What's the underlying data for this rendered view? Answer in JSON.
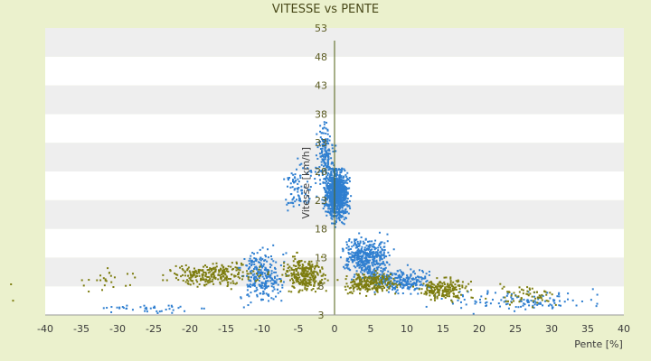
{
  "chart_data": {
    "type": "scatter",
    "title": "VITESSE vs PENTE",
    "xlabel": "Pente [%]",
    "ylabel": "Vitesse [km/h]",
    "xlim": [
      -40,
      40
    ],
    "ylim": [
      3,
      53
    ],
    "x_ticks": [
      -40,
      -35,
      -30,
      -25,
      -20,
      -15,
      -10,
      -5,
      0,
      5,
      10,
      15,
      20,
      25,
      30,
      35,
      40
    ],
    "y_ticks": [
      3,
      8,
      13,
      18,
      23,
      28,
      33,
      38,
      43,
      48,
      53
    ],
    "grid": "horizontal alternating bands",
    "colors": {
      "background": "#ebf1cd",
      "plot_band_light": "#ffffff",
      "plot_band_dark": "#eeeeee",
      "axis_line": "#4f5f10",
      "series_blue": "#2f7fd0",
      "series_olive": "#7d7d10"
    },
    "series": [
      {
        "color": "#2f7fd0",
        "clusters": [
          {
            "x": [
              -2,
              2.5
            ],
            "y": [
              18,
              30
            ],
            "count": 900
          },
          {
            "x": [
              -3,
              0.5
            ],
            "y": [
              24,
              38
            ],
            "count": 160
          },
          {
            "x": [
              -8,
              -2
            ],
            "y": [
              20,
              32
            ],
            "count": 90
          },
          {
            "x": [
              -14,
              -6
            ],
            "y": [
              3,
              16
            ],
            "count": 260
          },
          {
            "x": [
              0,
              9
            ],
            "y": [
              8,
              18
            ],
            "count": 420
          },
          {
            "x": [
              3,
              15
            ],
            "y": [
              6,
              12
            ],
            "count": 260
          },
          {
            "x": [
              10,
              40
            ],
            "y": [
              3,
              8
            ],
            "count": 120
          },
          {
            "x": [
              -35,
              -15
            ],
            "y": [
              3,
              5
            ],
            "count": 40
          }
        ]
      },
      {
        "color": "#7d7d10",
        "clusters": [
          {
            "x": [
              -25,
              -8
            ],
            "y": [
              7,
              13
            ],
            "count": 260
          },
          {
            "x": [
              -8,
              0
            ],
            "y": [
              6,
              14
            ],
            "count": 280
          },
          {
            "x": [
              0,
              10
            ],
            "y": [
              6,
              11
            ],
            "count": 240
          },
          {
            "x": [
              10,
              20
            ],
            "y": [
              5,
              10
            ],
            "count": 200
          },
          {
            "x": [
              20,
              33
            ],
            "y": [
              4,
              9
            ],
            "count": 60
          },
          {
            "x": [
              -38,
              -25
            ],
            "y": [
              6,
              12
            ],
            "count": 25
          },
          {
            "x": [
              -45,
              -44
            ],
            "y": [
              4,
              10
            ],
            "count": 2
          }
        ]
      }
    ]
  }
}
